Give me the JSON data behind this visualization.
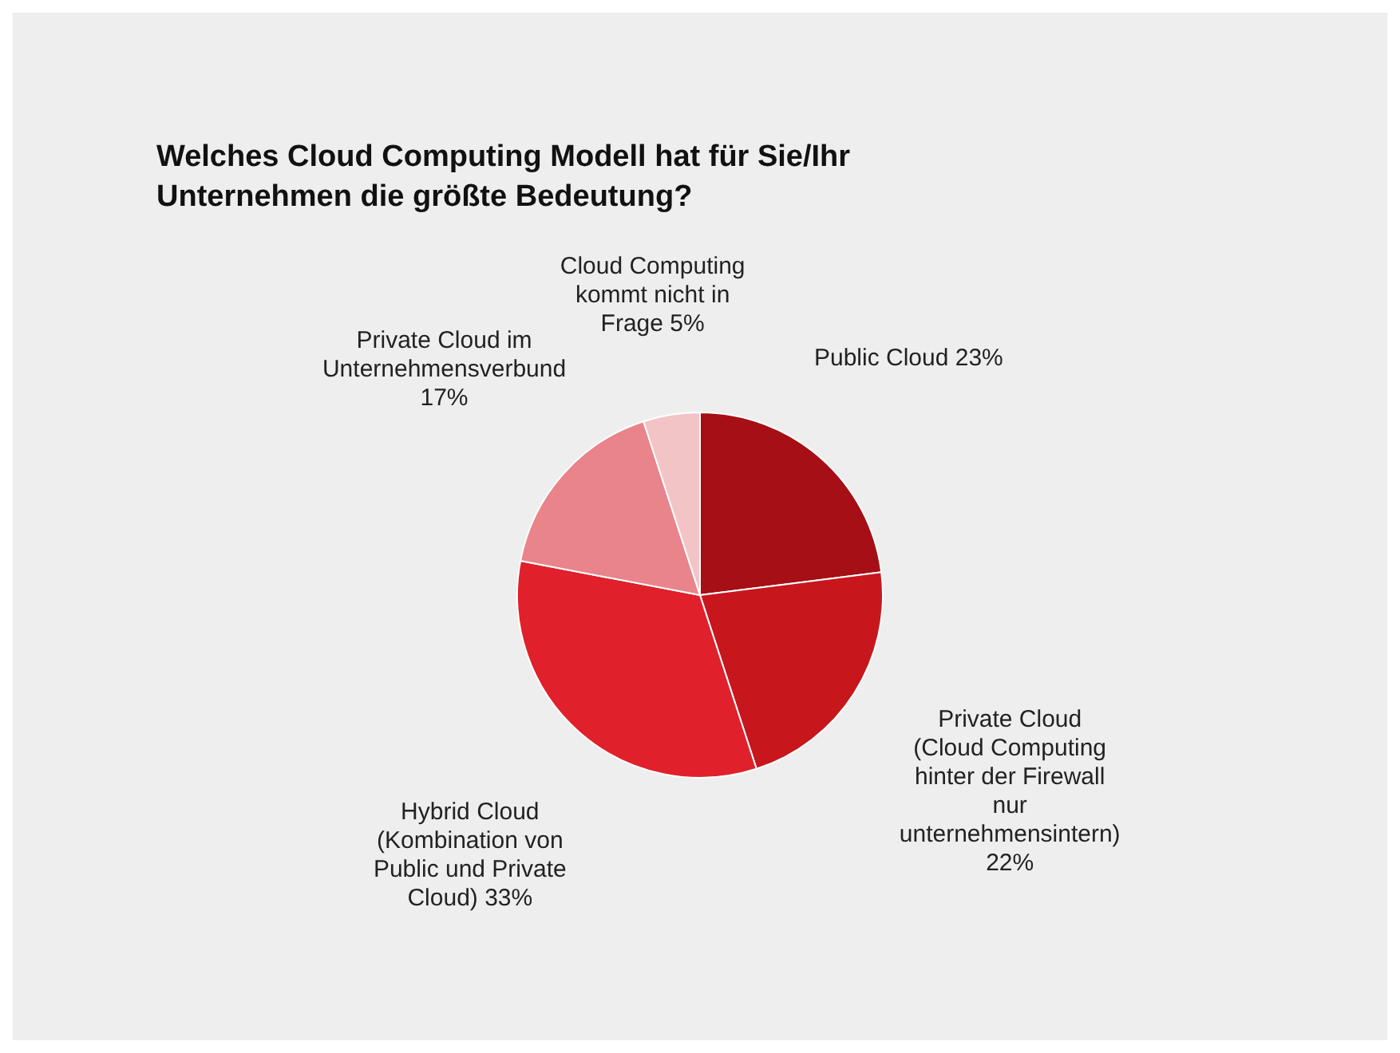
{
  "chart_data": {
    "type": "pie",
    "title": "Welches Cloud Computing Modell hat für Sie/Ihr Unternehmen die größte Bedeutung?",
    "categories": [
      "Public Cloud",
      "Private Cloud (Cloud Computing hinter der Firewall nur unternehmensintern)",
      "Hybrid Cloud (Kombination von Public und Private Cloud)",
      "Private Cloud im Unternehmensverbund",
      "Cloud Computing kommt nicht in Frage"
    ],
    "values": [
      23,
      22,
      33,
      17,
      5
    ],
    "value_labels": [
      "23%",
      "22%",
      "33%",
      "17%",
      "5%"
    ],
    "colors": [
      "#a50f15",
      "#c8161d",
      "#e0202a",
      "#e8848a",
      "#f2c4c6"
    ]
  }
}
